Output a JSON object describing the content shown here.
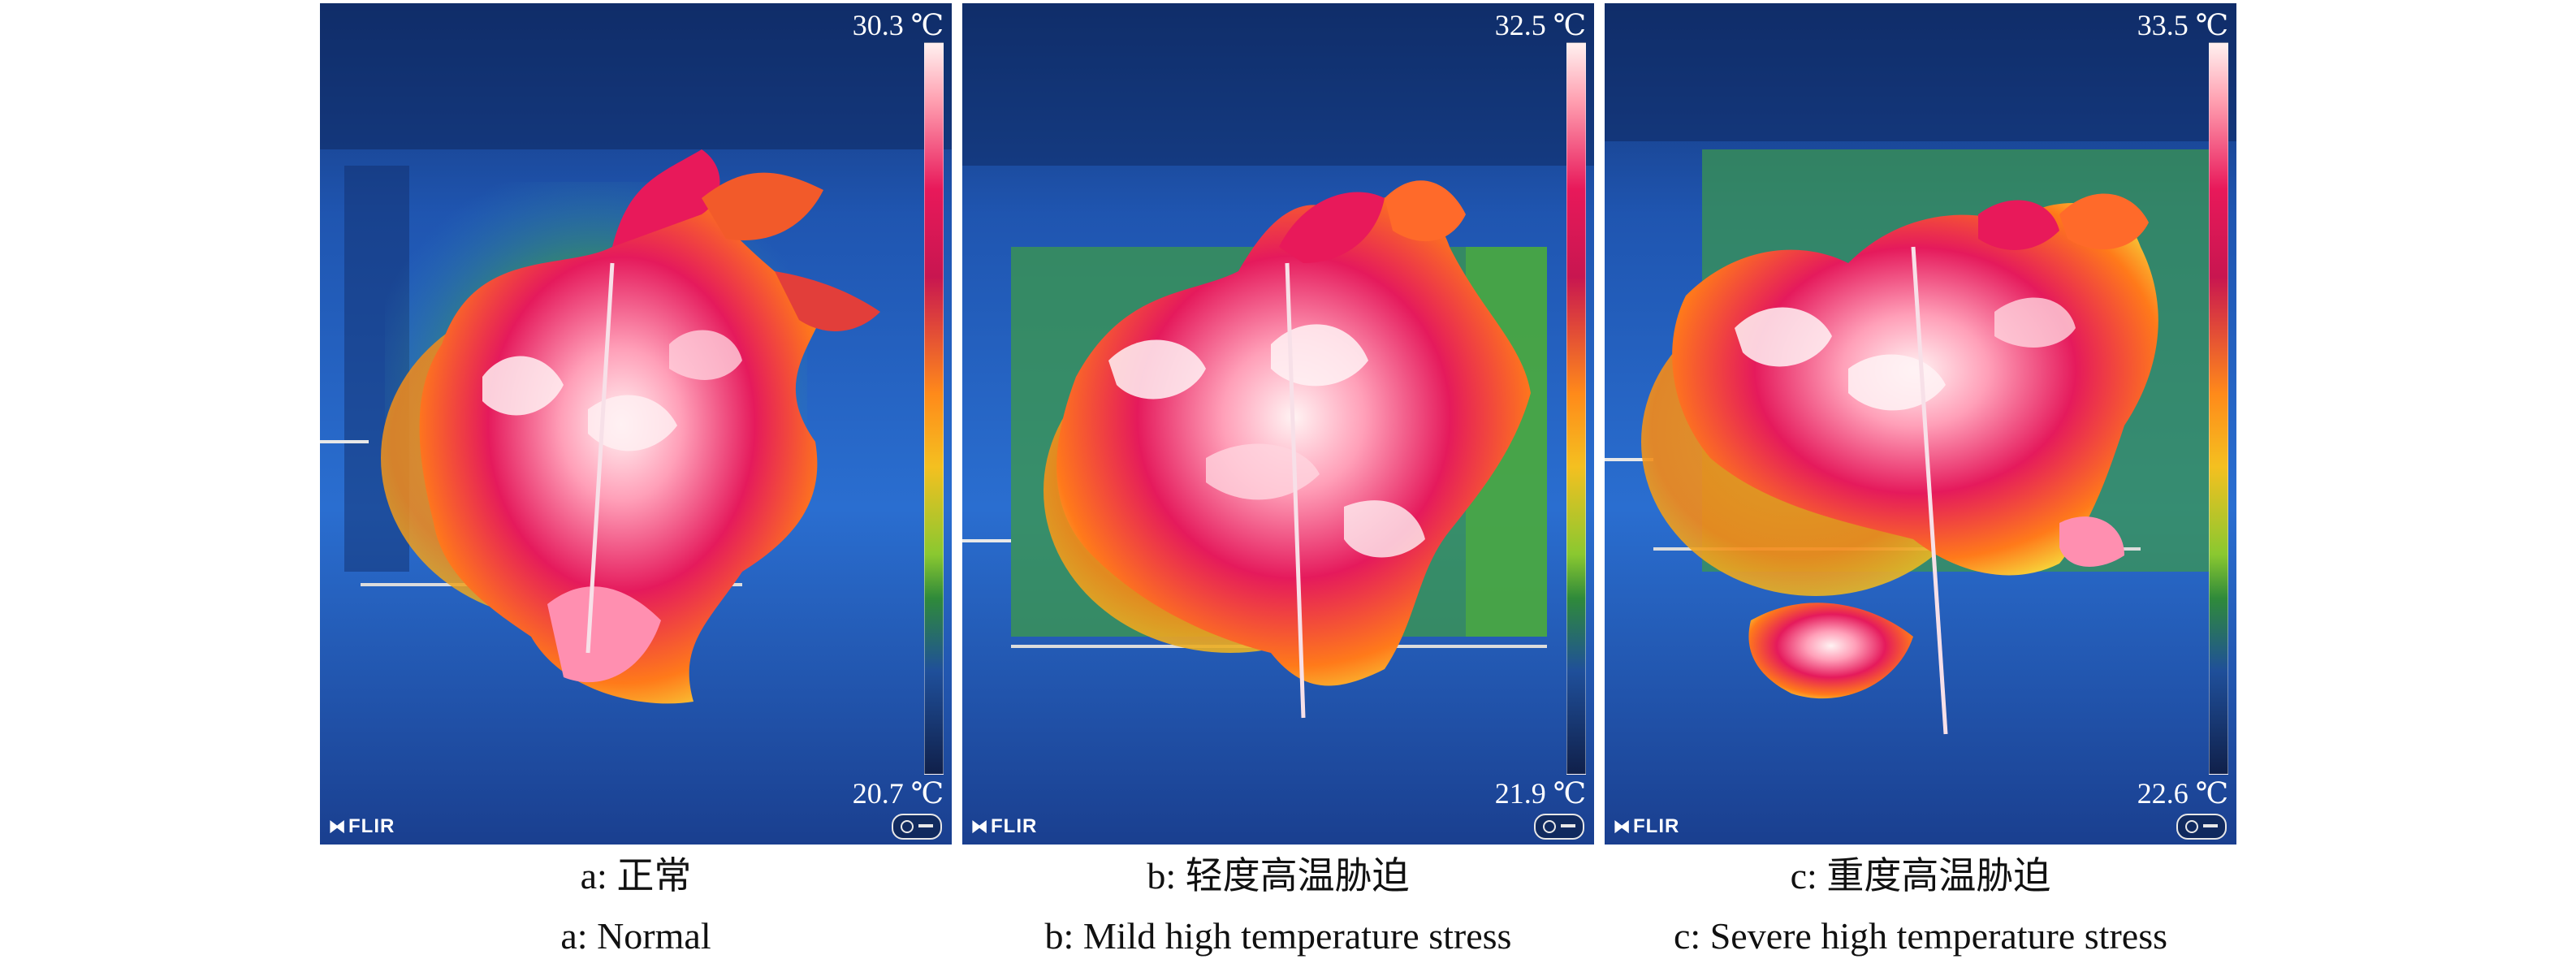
{
  "panels": [
    {
      "id": "a",
      "scale_max": "30.3 ℃",
      "scale_min": "20.7 ℃",
      "logo_text": "FLIR",
      "caption_cn": "a: 正常",
      "caption_en": "a: Normal"
    },
    {
      "id": "b",
      "scale_max": "32.5 ℃",
      "scale_min": "21.9 ℃",
      "logo_text": "FLIR",
      "caption_cn": "b: 轻度高温胁迫",
      "caption_en": "b: Mild high temperature stress"
    },
    {
      "id": "c",
      "scale_max": "33.5 ℃",
      "scale_min": "22.6 ℃",
      "logo_text": "FLIR",
      "caption_cn": "c: 重度高温胁迫",
      "caption_en": "c: Severe high temperature stress"
    }
  ],
  "colors": {
    "cold": "#10204a",
    "cool_blue": "#2f6fd0",
    "green": "#4faa46",
    "orange": "#ff8a1a",
    "hot_red": "#e8195a",
    "hottest": "#fff1f0"
  }
}
